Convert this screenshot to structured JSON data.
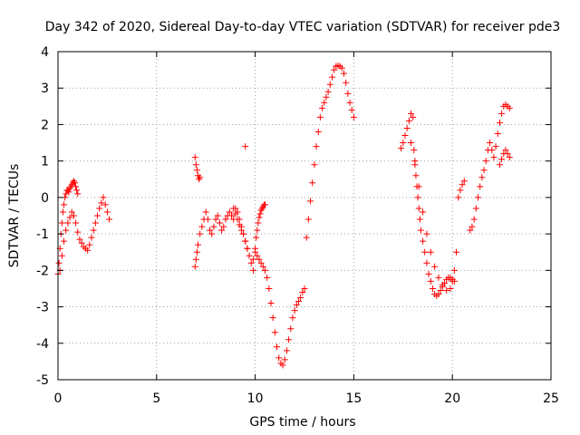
{
  "chart_data": {
    "type": "scatter",
    "title": "Day 342 of 2020, Sidereal Day-to-day VTEC variation (SDTVAR) for receiver pde3",
    "xlabel": "GPS time / hours",
    "ylabel": "SDTVAR / TECUs",
    "xlim": [
      0,
      25
    ],
    "ylim": [
      -5,
      4
    ],
    "xticks": [
      0,
      5,
      10,
      15,
      20,
      25
    ],
    "yticks": [
      -5,
      -4,
      -3,
      -2,
      -1,
      0,
      1,
      2,
      3,
      4
    ],
    "grid": true,
    "marker": "+",
    "color": "#ff0000",
    "series": [
      {
        "name": "SDTVAR",
        "x": [
          0.0,
          0.05,
          0.1,
          0.15,
          0.2,
          0.25,
          0.3,
          0.35,
          0.4,
          0.45,
          0.5,
          0.55,
          0.6,
          0.65,
          0.7,
          0.75,
          0.8,
          0.85,
          0.9,
          0.95,
          1.0,
          0.1,
          0.2,
          0.3,
          0.4,
          0.5,
          0.6,
          0.7,
          0.8,
          0.9,
          1.0,
          1.1,
          1.2,
          1.3,
          1.4,
          1.5,
          1.6,
          1.7,
          1.8,
          1.9,
          2.0,
          2.1,
          2.2,
          2.3,
          2.4,
          2.5,
          2.6,
          6.95,
          7.0,
          7.05,
          7.1,
          7.15,
          7.2,
          6.95,
          7.0,
          7.05,
          7.1,
          7.2,
          7.3,
          7.4,
          7.5,
          7.6,
          7.7,
          7.8,
          7.9,
          8.0,
          8.1,
          8.2,
          8.3,
          8.4,
          8.5,
          8.6,
          8.7,
          8.8,
          8.9,
          9.0,
          9.1,
          9.2,
          9.3,
          9.4,
          9.5,
          9.6,
          8.9,
          9.0,
          9.1,
          9.2,
          9.3,
          9.4,
          9.5,
          9.6,
          9.7,
          9.8,
          9.9,
          9.5,
          9.9,
          10.0,
          10.05,
          10.1,
          10.15,
          10.2,
          10.25,
          10.3,
          10.35,
          10.4,
          10.45,
          10.5,
          10.0,
          10.1,
          10.2,
          10.3,
          10.4,
          10.5,
          10.6,
          10.7,
          10.8,
          10.9,
          11.0,
          11.1,
          11.2,
          11.3,
          11.4,
          11.5,
          11.6,
          11.7,
          11.8,
          11.9,
          12.0,
          12.1,
          12.2,
          12.3,
          12.4,
          12.5,
          12.6,
          12.7,
          12.8,
          12.9,
          13.0,
          13.1,
          13.2,
          13.3,
          13.4,
          13.5,
          13.6,
          13.7,
          13.8,
          13.9,
          14.0,
          14.1,
          14.2,
          14.3,
          14.4,
          14.5,
          14.6,
          14.7,
          14.8,
          14.9,
          15.0,
          17.4,
          17.5,
          17.6,
          17.7,
          17.8,
          17.9,
          18.0,
          18.05,
          18.1,
          18.15,
          18.2,
          18.25,
          18.3,
          18.35,
          18.4,
          18.5,
          18.6,
          18.7,
          18.8,
          18.9,
          19.0,
          19.1,
          19.2,
          19.3,
          19.4,
          19.5,
          19.6,
          19.7,
          19.8,
          19.9,
          20.0,
          20.1,
          17.9,
          18.1,
          18.3,
          18.5,
          18.7,
          18.9,
          19.1,
          19.3,
          19.5,
          19.7,
          19.9,
          20.0,
          20.1,
          20.2,
          20.3,
          20.4,
          20.5,
          20.6,
          20.9,
          21.0,
          21.1,
          21.2,
          21.3,
          21.4,
          21.5,
          21.6,
          21.7,
          21.8,
          21.9,
          22.0,
          22.1,
          22.2,
          22.3,
          22.4,
          22.5,
          22.6,
          22.7,
          22.8,
          22.9,
          22.4,
          22.5,
          22.6,
          22.7,
          22.8,
          22.9
        ],
        "y": [
          -2.1,
          -1.8,
          -1.4,
          -1.0,
          -0.7,
          -0.4,
          -0.2,
          0.0,
          0.1,
          0.2,
          0.2,
          0.15,
          0.25,
          0.3,
          0.35,
          0.4,
          0.45,
          0.4,
          0.3,
          0.2,
          0.1,
          -2.0,
          -1.6,
          -1.2,
          -0.9,
          -0.7,
          -0.55,
          -0.4,
          -0.5,
          -0.7,
          -0.95,
          -1.15,
          -1.25,
          -1.35,
          -1.4,
          -1.45,
          -1.3,
          -1.1,
          -0.9,
          -0.7,
          -0.5,
          -0.3,
          -0.15,
          0.0,
          -0.2,
          -0.4,
          -0.6,
          1.1,
          0.9,
          0.75,
          0.6,
          0.5,
          0.55,
          -1.9,
          -1.7,
          -1.5,
          -1.3,
          -1.0,
          -0.8,
          -0.6,
          -0.4,
          -0.6,
          -0.9,
          -1.0,
          -0.8,
          -0.6,
          -0.5,
          -0.7,
          -0.9,
          -0.8,
          -0.6,
          -0.5,
          -0.4,
          -0.5,
          -0.6,
          -0.3,
          -0.4,
          -0.6,
          -0.8,
          -1.0,
          -1.2,
          -1.4,
          -0.3,
          -0.45,
          -0.6,
          -0.75,
          -0.9,
          -1.0,
          -1.2,
          -1.4,
          -1.6,
          -1.8,
          -2.0,
          1.4,
          -1.7,
          -1.4,
          -1.1,
          -0.9,
          -0.7,
          -0.55,
          -0.45,
          -0.35,
          -0.3,
          -0.25,
          -0.2,
          -0.2,
          -1.5,
          -1.6,
          -1.7,
          -1.8,
          -1.9,
          -2.0,
          -2.2,
          -2.5,
          -2.9,
          -3.3,
          -3.7,
          -4.1,
          -4.4,
          -4.55,
          -4.6,
          -4.45,
          -4.2,
          -3.9,
          -3.6,
          -3.3,
          -3.1,
          -2.95,
          -2.85,
          -2.75,
          -2.6,
          -2.5,
          -1.1,
          -0.6,
          -0.1,
          0.4,
          0.9,
          1.4,
          1.8,
          2.2,
          2.45,
          2.6,
          2.75,
          2.9,
          3.1,
          3.3,
          3.5,
          3.6,
          3.62,
          3.6,
          3.55,
          3.4,
          3.15,
          2.85,
          2.6,
          2.4,
          2.2,
          1.35,
          1.5,
          1.7,
          1.9,
          2.1,
          2.3,
          2.2,
          1.3,
          0.9,
          0.6,
          0.3,
          0.0,
          -0.3,
          -0.6,
          -0.9,
          -1.2,
          -1.5,
          -1.8,
          -2.1,
          -2.3,
          -2.5,
          -2.65,
          -2.7,
          -2.65,
          -2.55,
          -2.45,
          -2.35,
          -2.25,
          -2.2,
          -2.2,
          -2.25,
          -2.3,
          1.5,
          1.0,
          0.3,
          -0.4,
          -1.0,
          -1.5,
          -1.9,
          -2.2,
          -2.4,
          -2.55,
          -2.5,
          -2.3,
          -2.0,
          -1.5,
          0.0,
          0.2,
          0.35,
          0.45,
          -0.9,
          -0.8,
          -0.6,
          -0.3,
          0.0,
          0.3,
          0.55,
          0.75,
          1.0,
          1.3,
          1.5,
          1.3,
          1.1,
          1.4,
          1.75,
          2.05,
          2.3,
          2.5,
          2.55,
          2.5,
          2.45,
          0.9,
          1.05,
          1.2,
          1.3,
          1.2,
          1.1
        ]
      }
    ]
  }
}
